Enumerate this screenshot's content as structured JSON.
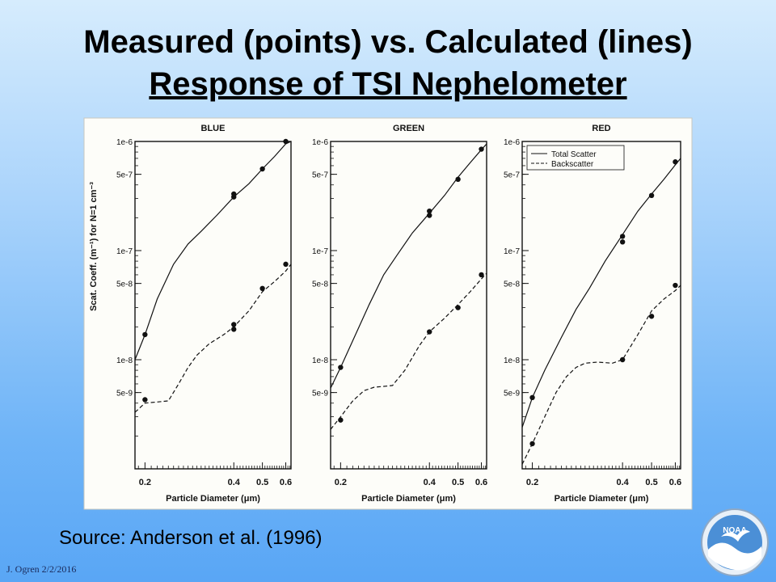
{
  "title": "Measured (points) vs. Calculated (lines)",
  "subtitle": "Response of TSI Nephelometer",
  "source": "Source:  Anderson et al. (1996)",
  "footer": "J. Ogren  2/2/2016",
  "logo_text": "NOAA",
  "chart_data": [
    {
      "type": "line",
      "title": "BLUE",
      "xlabel": "Particle Diameter (μm)",
      "ylabel": "Scat. Coeff. (m⁻¹) for N=1 cm⁻³",
      "xscale": "log",
      "yscale": "log",
      "xlim": [
        0.185,
        0.625
      ],
      "ylim": [
        1e-09,
        1e-06
      ],
      "xticks": [
        0.2,
        0.4,
        0.5,
        0.6
      ],
      "xticklabels": [
        "0.2",
        "0.4",
        "0.5",
        "0.6"
      ],
      "yticks": [
        1e-06,
        5e-07,
        1e-07,
        5e-08,
        1e-08,
        5e-09
      ],
      "yticklabels": [
        "1e-6",
        "5e-7",
        "1e-7",
        "5e-8",
        "1e-8",
        "5e-9"
      ],
      "legend": null,
      "series": [
        {
          "style": "solid",
          "kind": "line",
          "x": [
            0.185,
            0.2,
            0.22,
            0.25,
            0.28,
            0.31,
            0.35,
            0.4,
            0.45,
            0.5,
            0.55,
            0.6,
            0.625
          ],
          "y": [
            1e-08,
            1.7e-08,
            3.6e-08,
            7.5e-08,
            1.15e-07,
            1.5e-07,
            2.1e-07,
            3.1e-07,
            4.1e-07,
            5.6e-07,
            7.3e-07,
            9.5e-07,
            1e-06
          ]
        },
        {
          "style": "dashed",
          "kind": "line",
          "x": [
            0.185,
            0.2,
            0.22,
            0.24,
            0.26,
            0.28,
            0.3,
            0.33,
            0.37,
            0.4,
            0.45,
            0.5,
            0.55,
            0.6,
            0.625
          ],
          "y": [
            3.3e-09,
            4e-09,
            4.1e-09,
            4.2e-09,
            6e-09,
            8.5e-09,
            1.1e-08,
            1.4e-08,
            1.7e-08,
            2e-08,
            2.8e-08,
            4.2e-08,
            5.2e-08,
            6.5e-08,
            7.5e-08
          ]
        },
        {
          "style": "points",
          "kind": "scatter",
          "x": [
            0.2,
            0.4,
            0.4,
            0.5,
            0.6,
            0.2,
            0.4,
            0.4,
            0.5,
            0.6
          ],
          "y": [
            1.7e-08,
            3.1e-07,
            3.3e-07,
            5.6e-07,
            1e-06,
            4.3e-09,
            1.9e-08,
            2.1e-08,
            4.5e-08,
            7.5e-08
          ]
        }
      ]
    },
    {
      "type": "line",
      "title": "GREEN",
      "xlabel": "Particle Diameter (μm)",
      "ylabel": "",
      "xscale": "log",
      "yscale": "log",
      "xlim": [
        0.185,
        0.625
      ],
      "ylim": [
        1e-09,
        1e-06
      ],
      "xticks": [
        0.2,
        0.4,
        0.5,
        0.6
      ],
      "xticklabels": [
        "0.2",
        "0.4",
        "0.5",
        "0.6"
      ],
      "yticks": [
        1e-06,
        5e-07,
        1e-07,
        5e-08,
        1e-08,
        5e-09
      ],
      "yticklabels": [
        "1e-6",
        "5e-7",
        "1e-7",
        "5e-8",
        "1e-8",
        "5e-9"
      ],
      "legend": null,
      "series": [
        {
          "style": "solid",
          "kind": "line",
          "x": [
            0.185,
            0.2,
            0.22,
            0.25,
            0.28,
            0.31,
            0.35,
            0.4,
            0.45,
            0.5,
            0.55,
            0.6,
            0.625
          ],
          "y": [
            5.5e-09,
            8.5e-09,
            1.5e-08,
            3.2e-08,
            6e-08,
            9e-08,
            1.45e-07,
            2.2e-07,
            3.2e-07,
            4.7e-07,
            6.4e-07,
            8.4e-07,
            9.5e-07
          ]
        },
        {
          "style": "dashed",
          "kind": "line",
          "x": [
            0.185,
            0.2,
            0.22,
            0.24,
            0.26,
            0.28,
            0.3,
            0.33,
            0.37,
            0.4,
            0.45,
            0.5,
            0.55,
            0.6,
            0.625
          ],
          "y": [
            2.3e-09,
            3e-09,
            4.2e-09,
            5.2e-09,
            5.6e-09,
            5.7e-09,
            5.8e-09,
            8e-09,
            1.35e-08,
            1.8e-08,
            2.4e-08,
            3.2e-08,
            4.2e-08,
            5.5e-08,
            6.2e-08
          ]
        },
        {
          "style": "points",
          "kind": "scatter",
          "x": [
            0.2,
            0.4,
            0.4,
            0.5,
            0.6,
            0.2,
            0.4,
            0.5,
            0.6
          ],
          "y": [
            8.5e-09,
            2.1e-07,
            2.3e-07,
            4.5e-07,
            8.5e-07,
            2.8e-09,
            1.8e-08,
            3e-08,
            6e-08
          ]
        }
      ]
    },
    {
      "type": "line",
      "title": "RED",
      "xlabel": "Particle Diameter (μm)",
      "ylabel": "",
      "xscale": "log",
      "yscale": "log",
      "xlim": [
        0.185,
        0.625
      ],
      "ylim": [
        1e-09,
        1e-06
      ],
      "xticks": [
        0.2,
        0.4,
        0.5,
        0.6
      ],
      "xticklabels": [
        "0.2",
        "0.4",
        "0.5",
        "0.6"
      ],
      "yticks": [
        1e-06,
        5e-07,
        1e-07,
        5e-08,
        1e-08,
        5e-09
      ],
      "yticklabels": [
        "1e-6",
        "5e-7",
        "1e-7",
        "5e-8",
        "1e-8",
        "5e-9"
      ],
      "legend": {
        "position": "top-left",
        "entries": [
          {
            "label": "Total Scatter",
            "style": "solid"
          },
          {
            "label": "Backscatter",
            "style": "dashed"
          }
        ]
      },
      "series": [
        {
          "name": "Total Scatter",
          "style": "solid",
          "kind": "line",
          "x": [
            0.185,
            0.2,
            0.22,
            0.25,
            0.28,
            0.31,
            0.35,
            0.4,
            0.45,
            0.5,
            0.55,
            0.6,
            0.625
          ],
          "y": [
            2.4e-09,
            4.5e-09,
            8e-09,
            1.6e-08,
            2.9e-08,
            4.5e-08,
            8e-08,
            1.4e-07,
            2.3e-07,
            3.3e-07,
            4.5e-07,
            6.1e-07,
            7e-07
          ]
        },
        {
          "name": "Backscatter",
          "style": "dashed",
          "kind": "line",
          "x": [
            0.185,
            0.2,
            0.22,
            0.24,
            0.26,
            0.28,
            0.3,
            0.33,
            0.37,
            0.4,
            0.45,
            0.5,
            0.55,
            0.6,
            0.625
          ],
          "y": [
            1.1e-09,
            1.7e-09,
            3e-09,
            5e-09,
            7e-09,
            8.5e-09,
            9.3e-09,
            9.5e-09,
            9.3e-09,
            1e-08,
            1.7e-08,
            2.8e-08,
            3.6e-08,
            4.3e-08,
            4.8e-08
          ]
        },
        {
          "style": "points",
          "kind": "scatter",
          "x": [
            0.2,
            0.4,
            0.4,
            0.5,
            0.6,
            0.2,
            0.4,
            0.5,
            0.6
          ],
          "y": [
            4.5e-09,
            1.2e-07,
            1.35e-07,
            3.2e-07,
            6.5e-07,
            1.7e-09,
            1e-08,
            2.5e-08,
            4.8e-08
          ]
        }
      ]
    }
  ]
}
